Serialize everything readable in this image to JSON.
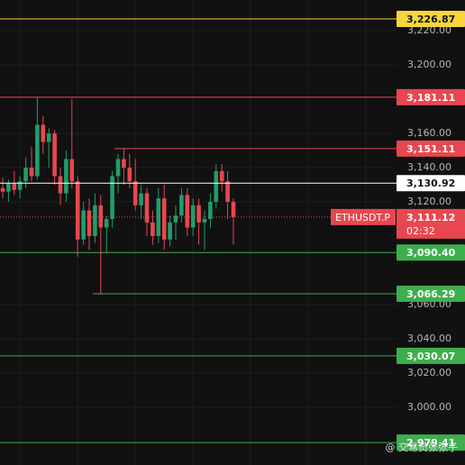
{
  "chart_data": {
    "type": "candlestick",
    "ylim": [
      2966.3,
      3237.9
    ],
    "yticks": [
      {
        "value": 3220,
        "label": "3,220.00"
      },
      {
        "value": 3200,
        "label": "3,200.00"
      },
      {
        "value": 3160,
        "label": "3,160.00"
      },
      {
        "value": 3140,
        "label": "3,140.00"
      },
      {
        "value": 3120,
        "label": "3,120.00"
      },
      {
        "value": 3060,
        "label": "3,060.00"
      },
      {
        "value": 3040,
        "label": "3,040.00"
      },
      {
        "value": 3020,
        "label": "3,020.00"
      },
      {
        "value": 3000,
        "label": "3,000.00"
      }
    ],
    "grid": true,
    "up_color": "#1f9e6a",
    "down_color": "#e8474f",
    "open": [
      3128,
      3126,
      3131,
      3127,
      3132,
      3140,
      3135,
      3165,
      3155,
      3160,
      3135,
      3125,
      3145,
      3132,
      3098,
      3115,
      3100,
      3118,
      3105,
      3110,
      3135,
      3145,
      3140,
      3132,
      3118,
      3125,
      3108,
      3100,
      3122,
      3098,
      3108,
      3112,
      3124,
      3105,
      3118,
      3108,
      3110,
      3120,
      3138,
      3132,
      3120
    ],
    "high": [
      3134,
      3133,
      3138,
      3135,
      3146,
      3152,
      3181,
      3170,
      3163,
      3162,
      3140,
      3150,
      3180,
      3135,
      3120,
      3122,
      3125,
      3124,
      3112,
      3138,
      3148,
      3151,
      3148,
      3145,
      3130,
      3128,
      3115,
      3128,
      3130,
      3112,
      3118,
      3128,
      3128,
      3122,
      3122,
      3115,
      3125,
      3142,
      3142,
      3138,
      3122
    ],
    "low": [
      3122,
      3120,
      3124,
      3122,
      3128,
      3132,
      3133,
      3148,
      3140,
      3130,
      3118,
      3120,
      3128,
      3088,
      3095,
      3092,
      3096,
      3066,
      3090,
      3105,
      3125,
      3130,
      3128,
      3115,
      3110,
      3100,
      3095,
      3096,
      3092,
      3094,
      3098,
      3108,
      3100,
      3100,
      3095,
      3092,
      3105,
      3116,
      3126,
      3110,
      3095
    ],
    "close": [
      3126,
      3131,
      3127,
      3132,
      3140,
      3135,
      3165,
      3155,
      3160,
      3135,
      3125,
      3145,
      3132,
      3098,
      3115,
      3100,
      3118,
      3105,
      3110,
      3135,
      3145,
      3140,
      3132,
      3118,
      3125,
      3108,
      3100,
      3122,
      3098,
      3108,
      3112,
      3124,
      3105,
      3118,
      3108,
      3110,
      3120,
      3138,
      3132,
      3120,
      3111.12
    ],
    "levels": [
      {
        "value": 3226.87,
        "label": "3,226.87",
        "color": "#f5d63d"
      },
      {
        "value": 3181.11,
        "label": "3,181.11",
        "color": "#e8474f"
      },
      {
        "value": 3151.11,
        "label": "3,151.11",
        "color": "#e8474f"
      },
      {
        "value": 3130.92,
        "label": "3,130.92",
        "color": "#ffffff"
      },
      {
        "value": 3090.4,
        "label": "3,090.40",
        "color": "#3fae4f"
      },
      {
        "value": 3066.29,
        "label": "3,066.29",
        "color": "#3fae4f"
      },
      {
        "value": 3030.07,
        "label": "3,030.07",
        "color": "#3fae4f"
      },
      {
        "value": 2979.41,
        "label": "2,979.41",
        "color": "#3fae4f"
      }
    ],
    "current": {
      "value": 3111.12,
      "label": "3,111.12",
      "symbol": "ETHUSDT.P",
      "countdown": "02:32",
      "color": "#e8474f"
    },
    "watermark": "@ 交易员张张子"
  }
}
